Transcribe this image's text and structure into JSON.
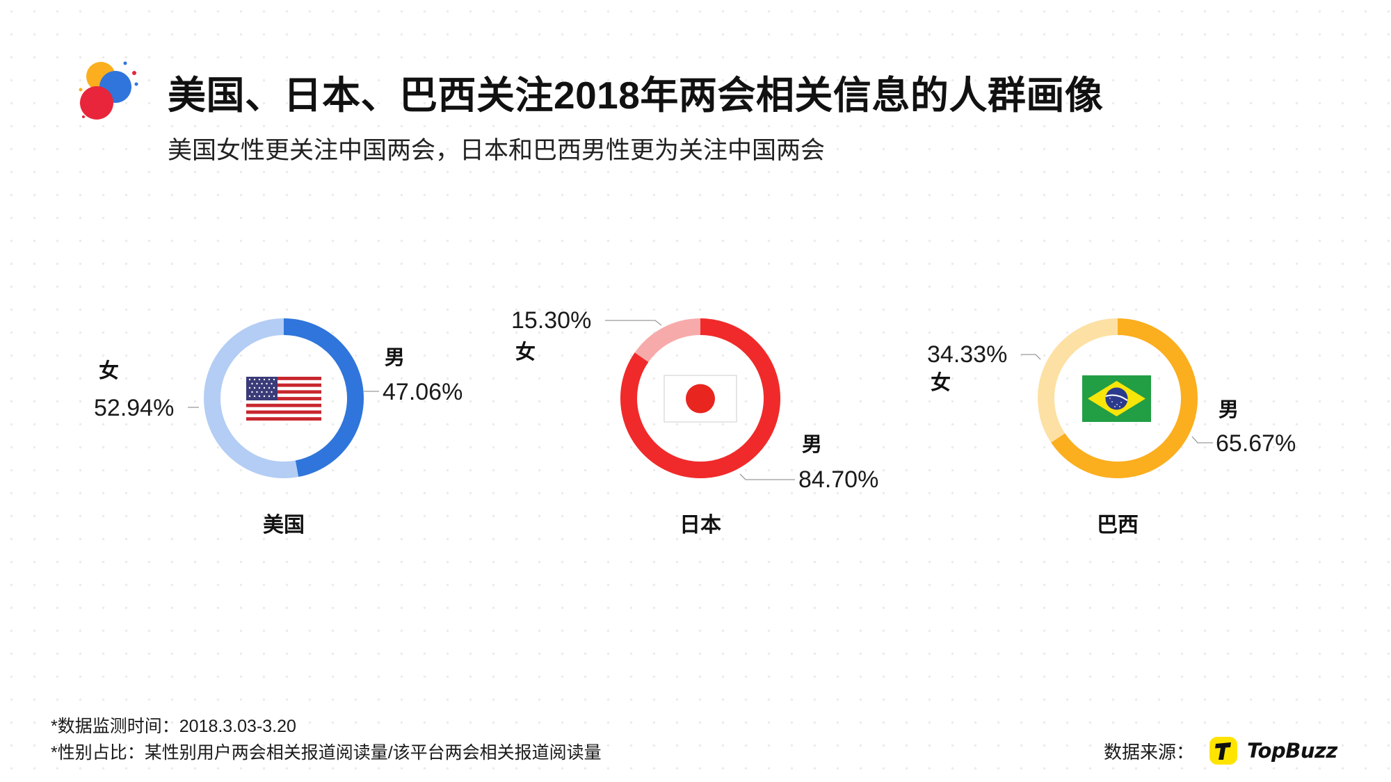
{
  "title": "美国、日本、巴西关注2018年两会相关信息的人群画像",
  "subtitle": "美国女性更关注中国两会，日本和巴西男性更为关注中国两会",
  "colors": {
    "usa_male": "#2f75db",
    "usa_female": "#b3cdf4",
    "japan_male": "#f02a2a",
    "japan_female": "#f7aaaa",
    "brazil_male": "#fbae1e",
    "brazil_female": "#fde0a3"
  },
  "chart_data": [
    {
      "type": "pie",
      "country": "美国",
      "flag_icon": "usa-flag-icon",
      "slices": [
        {
          "label": "男",
          "value": 47.06,
          "value_label": "47.06%"
        },
        {
          "label": "女",
          "value": 52.94,
          "value_label": "52.94%"
        }
      ]
    },
    {
      "type": "pie",
      "country": "日本",
      "flag_icon": "japan-flag-icon",
      "slices": [
        {
          "label": "男",
          "value": 84.7,
          "value_label": "84.70%"
        },
        {
          "label": "女",
          "value": 15.3,
          "value_label": "15.30%"
        }
      ]
    },
    {
      "type": "pie",
      "country": "巴西",
      "flag_icon": "brazil-flag-icon",
      "slices": [
        {
          "label": "男",
          "value": 65.67,
          "value_label": "65.67%"
        },
        {
          "label": "女",
          "value": 34.33,
          "value_label": "34.33%"
        }
      ]
    }
  ],
  "footer": {
    "note_time": "*数据监测时间：2018.3.03-3.20",
    "note_ratio": "*性别占比：某性别用户两会相关报道阅读量/该平台两会相关报道阅读量"
  },
  "source": {
    "label": "数据来源：",
    "brand": "TopBuzz",
    "brand_icon": "topbuzz-logo-icon"
  }
}
